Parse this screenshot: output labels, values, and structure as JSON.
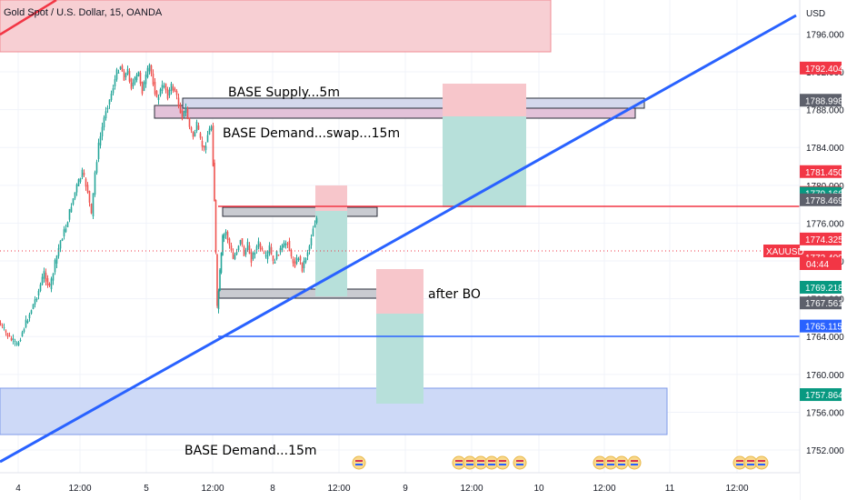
{
  "chart_data": {
    "type": "candlestick",
    "title": "Gold Spot / U.S. Dollar, 15, OANDA",
    "currency": "USD",
    "symbol_tag": "XAUUSD",
    "countdown": "04:44",
    "ylim": [
      1749.6,
      1799.6
    ],
    "y_ticks": [
      "1796.000",
      "1792.000",
      "1788.000",
      "1784.000",
      "1780.000",
      "1776.000",
      "1772.000",
      "1768.000",
      "1764.000",
      "1760.000",
      "1756.000",
      "1752.000"
    ],
    "x_ticks": [
      "4",
      "12:00",
      "5",
      "12:00",
      "8",
      "12:00",
      "9",
      "12:00",
      "10",
      "12:00",
      "11",
      "12:00"
    ],
    "price_tags": [
      {
        "value": 1792.404,
        "label": "1792.404",
        "color": "#f23645"
      },
      {
        "value": 1788.998,
        "label": "1788.998",
        "color": "#5d606b"
      },
      {
        "value": 1781.45,
        "label": "1781.450",
        "color": "#f23645"
      },
      {
        "value": 1779.244,
        "label": "1779.244",
        "color": "#f23645"
      },
      {
        "value": 1779.166,
        "label": "1779.166",
        "color": "#089981"
      },
      {
        "value": 1778.469,
        "label": "1778.469",
        "color": "#5d606b"
      },
      {
        "value": 1774.325,
        "label": "1774.325",
        "color": "#f23645"
      },
      {
        "value": 1772.409,
        "label": "1772.409",
        "color": "#f23645"
      },
      {
        "value": 1769.218,
        "label": "1769.218",
        "color": "#089981"
      },
      {
        "value": 1767.561,
        "label": "1767.561",
        "color": "#5d606b"
      },
      {
        "value": 1765.115,
        "label": "1765.115",
        "color": "#2962ff"
      },
      {
        "value": 1757.864,
        "label": "1757.864",
        "color": "#089981"
      }
    ],
    "annotations": [
      {
        "text": "BASE Supply...5m",
        "color": "#131722"
      },
      {
        "text": "BASE Demand...swap...15m",
        "color": "#f23645"
      },
      {
        "text": "after BO",
        "color": "#131722"
      },
      {
        "text": "BASE Demand...15m",
        "color": "#2962ff"
      }
    ],
    "colors": {
      "up": "#26a69a",
      "down": "#ef5350",
      "trendline": "#2962ff",
      "resistance": "#f23645",
      "support": "#2962ff"
    }
  }
}
